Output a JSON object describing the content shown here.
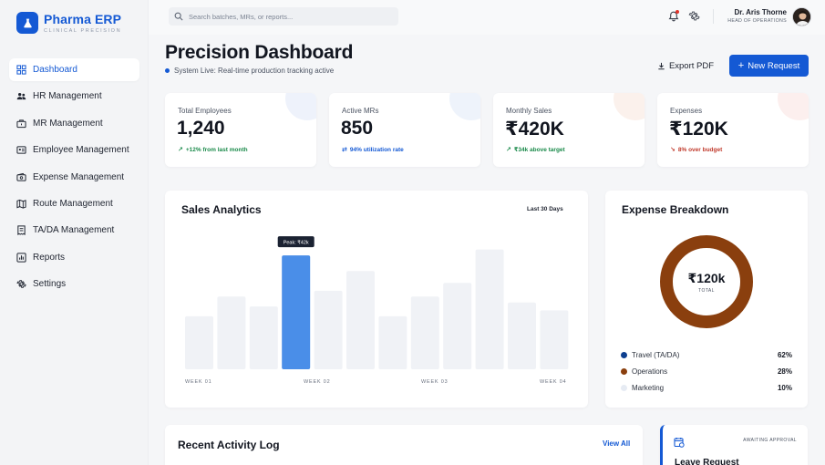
{
  "brand": {
    "name": "Pharma ERP",
    "subtitle": "CLINICAL PRECISION"
  },
  "sidebar": {
    "items": [
      {
        "label": "Dashboard",
        "icon": "grid-icon",
        "active": true
      },
      {
        "label": "HR Management",
        "icon": "users-icon"
      },
      {
        "label": "MR Management",
        "icon": "briefcase-icon"
      },
      {
        "label": "Employee Management",
        "icon": "id-card-icon"
      },
      {
        "label": "Expense Management",
        "icon": "wallet-icon"
      },
      {
        "label": "Route Management",
        "icon": "map-icon"
      },
      {
        "label": "TA/DA Management",
        "icon": "receipt-icon"
      },
      {
        "label": "Reports",
        "icon": "bar-chart-icon"
      },
      {
        "label": "Settings",
        "icon": "gear-icon"
      }
    ]
  },
  "topbar": {
    "search_placeholder": "Search batches, MRs, or reports...",
    "user_name": "Dr. Aris Thorne",
    "user_role": "HEAD OF OPERATIONS"
  },
  "header": {
    "title": "Precision Dashboard",
    "status": "System Live: Real-time production tracking active",
    "export_label": "Export PDF",
    "new_label": "New Request"
  },
  "kpis": [
    {
      "label": "Total Employees",
      "value": "1,240",
      "sub": "+12% from last month",
      "arrow": "↗",
      "sub_color": "#1a8a4a",
      "tint": "#eef2fb"
    },
    {
      "label": "Active MRs",
      "value": "850",
      "sub": "94% utilization rate",
      "arrow": "⇄",
      "sub_color": "#1459d4",
      "tint": "#eef3fb"
    },
    {
      "label": "Monthly Sales",
      "value": "₹420K",
      "sub": "₹34k above target",
      "arrow": "↗",
      "sub_color": "#1a8a4a",
      "tint": "#fbf1ec"
    },
    {
      "label": "Expenses",
      "value": "₹120K",
      "sub": "8% over budget",
      "arrow": "↘",
      "sub_color": "#c0392b",
      "tint": "#fcefee"
    }
  ],
  "sales": {
    "title": "Sales Analytics",
    "range": "Last 30 Days",
    "tooltip": "Peak: ₹42k"
  },
  "chart_data": {
    "type": "bar",
    "title": "Sales Analytics",
    "x_tick_labels": [
      "WEEK 01",
      "WEEK 02",
      "WEEK 03",
      "WEEK 04"
    ],
    "values": [
      27,
      37,
      32,
      58,
      40,
      50,
      27,
      37,
      44,
      61,
      34,
      30
    ],
    "highlight_index": 3,
    "ylim": [
      0,
      65
    ],
    "colors": {
      "bar": "#f0f2f6",
      "highlight": "#4a8ee8"
    },
    "grid": false
  },
  "expense": {
    "title": "Expense Breakdown",
    "total": "₹120k",
    "total_label": "TOTAL",
    "items": [
      {
        "name": "Travel (TA/DA)",
        "value": "62%",
        "color": "#0d3f8f"
      },
      {
        "name": "Operations",
        "value": "28%",
        "color": "#8a3f0e"
      },
      {
        "name": "Marketing",
        "value": "10%",
        "color": "#e6ebf3"
      }
    ],
    "ring_color": "#8a3f0e"
  },
  "activity": {
    "title": "Recent Activity Log",
    "view_all": "View All"
  },
  "leave": {
    "status": "AWAITING APPROVAL",
    "title": "Leave Request"
  }
}
